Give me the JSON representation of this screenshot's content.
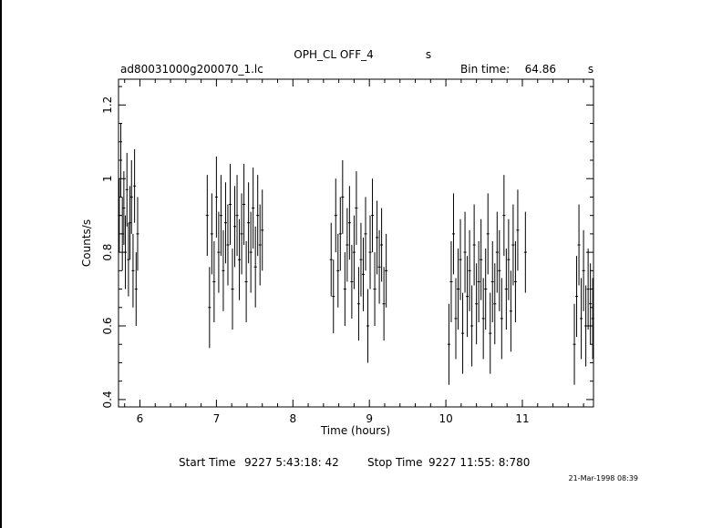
{
  "header": {
    "title": "OPH_CL OFF_4",
    "title_unit": "s",
    "file_name": "ad80031000g200070_1.lc",
    "bin_time_label": "Bin time:",
    "bin_time_value": "64.86",
    "bin_time_unit": "s"
  },
  "footer": {
    "start_label": "Start Time",
    "start_value": "9227  5:43:18: 42",
    "stop_label": "Stop Time",
    "stop_value": "9227 11:55: 8:780",
    "date_stamp": "21-Mar-1998 08:39"
  },
  "colors": {
    "ink": "#000000",
    "background": "#ffffff"
  },
  "chart_data": {
    "type": "scatter",
    "error_bars": true,
    "xlabel": "Time (hours)",
    "ylabel": "Counts/s",
    "xlim": [
      5.72,
      11.93
    ],
    "ylim": [
      0.38,
      1.27
    ],
    "xticks": [
      6,
      7,
      8,
      9,
      10,
      11
    ],
    "yticks": [
      0.4,
      0.6,
      0.8,
      1,
      1.2
    ],
    "ytick_labels": [
      "0.4",
      "0.6",
      "0.8",
      "1",
      "1.2"
    ],
    "segments": [
      {
        "x": [
          5.73,
          5.75,
          5.77,
          5.79,
          5.81,
          5.83,
          5.85,
          5.87,
          5.89,
          5.91,
          5.93,
          5.95,
          5.97
        ],
        "y": [
          0.9,
          1.05,
          0.85,
          0.92,
          0.8,
          0.97,
          0.78,
          0.88,
          0.95,
          0.75,
          0.98,
          0.7,
          0.85
        ],
        "err": [
          0.1,
          0.1,
          0.1,
          0.1,
          0.1,
          0.1,
          0.1,
          0.1,
          0.1,
          0.1,
          0.1,
          0.1,
          0.1
        ]
      },
      {
        "x": [
          6.88,
          6.91,
          6.94,
          6.97,
          7.0,
          7.03,
          7.06,
          7.09,
          7.12,
          7.15,
          7.18,
          7.21,
          7.24,
          7.27,
          7.3,
          7.33,
          7.36,
          7.39,
          7.42,
          7.45,
          7.48,
          7.51,
          7.54,
          7.57,
          7.6
        ],
        "y": [
          0.9,
          0.65,
          0.85,
          0.72,
          0.95,
          0.8,
          0.9,
          0.75,
          0.88,
          0.82,
          0.93,
          0.7,
          0.87,
          0.9,
          0.78,
          0.85,
          0.93,
          0.72,
          0.88,
          0.8,
          0.92,
          0.76,
          0.9,
          0.82,
          0.86
        ],
        "err": [
          0.11,
          0.11,
          0.11,
          0.11,
          0.11,
          0.11,
          0.11,
          0.11,
          0.11,
          0.11,
          0.11,
          0.11,
          0.11,
          0.11,
          0.11,
          0.11,
          0.11,
          0.11,
          0.11,
          0.11,
          0.11,
          0.11,
          0.11,
          0.11,
          0.11
        ]
      },
      {
        "x": [
          8.5,
          8.53,
          8.56,
          8.59,
          8.62,
          8.65,
          8.68,
          8.71,
          8.74,
          8.77,
          8.8,
          8.83,
          8.86,
          8.89,
          8.92,
          8.95,
          8.98,
          9.01,
          9.04,
          9.07,
          9.1,
          9.13,
          9.16,
          9.19,
          9.22
        ],
        "y": [
          0.78,
          0.68,
          0.9,
          0.75,
          0.85,
          0.95,
          0.7,
          0.82,
          0.88,
          0.72,
          0.8,
          0.92,
          0.66,
          0.78,
          0.74,
          0.85,
          0.6,
          0.8,
          0.9,
          0.7,
          0.84,
          0.76,
          0.82,
          0.66,
          0.75
        ],
        "err": [
          0.1,
          0.1,
          0.1,
          0.1,
          0.1,
          0.1,
          0.1,
          0.1,
          0.1,
          0.1,
          0.1,
          0.1,
          0.1,
          0.1,
          0.1,
          0.1,
          0.1,
          0.1,
          0.1,
          0.1,
          0.1,
          0.1,
          0.1,
          0.1,
          0.1
        ]
      },
      {
        "x": [
          10.04,
          10.07,
          10.1,
          10.13,
          10.16,
          10.19,
          10.22,
          10.25,
          10.28,
          10.31,
          10.34,
          10.37,
          10.4,
          10.43,
          10.46,
          10.49,
          10.52,
          10.55,
          10.58,
          10.61,
          10.64,
          10.67,
          10.7,
          10.73,
          10.76,
          10.79,
          10.82,
          10.85,
          10.88,
          10.91,
          10.94,
          11.04
        ],
        "y": [
          0.55,
          0.72,
          0.85,
          0.62,
          0.7,
          0.78,
          0.58,
          0.8,
          0.68,
          0.75,
          0.6,
          0.82,
          0.66,
          0.72,
          0.78,
          0.62,
          0.7,
          0.85,
          0.58,
          0.72,
          0.66,
          0.8,
          0.75,
          0.62,
          0.9,
          0.7,
          0.78,
          0.64,
          0.82,
          0.72,
          0.86,
          0.8
        ],
        "err": [
          0.11,
          0.11,
          0.11,
          0.11,
          0.11,
          0.11,
          0.11,
          0.11,
          0.11,
          0.11,
          0.11,
          0.11,
          0.11,
          0.11,
          0.11,
          0.11,
          0.11,
          0.11,
          0.11,
          0.11,
          0.11,
          0.11,
          0.11,
          0.11,
          0.11,
          0.11,
          0.11,
          0.11,
          0.11,
          0.11,
          0.11,
          0.11
        ]
      },
      {
        "x": [
          11.68,
          11.71,
          11.74,
          11.77,
          11.8,
          11.83,
          11.86,
          11.89,
          11.92
        ],
        "y": [
          0.55,
          0.68,
          0.82,
          0.62,
          0.75,
          0.6,
          0.7,
          0.66,
          0.62
        ],
        "err": [
          0.11,
          0.11,
          0.11,
          0.11,
          0.11,
          0.11,
          0.11,
          0.11,
          0.11
        ]
      }
    ]
  }
}
